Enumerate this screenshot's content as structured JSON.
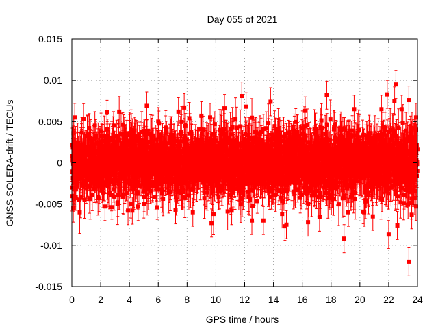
{
  "chart_data": {
    "type": "scatter",
    "title": "Day 055 of 2021",
    "xlabel": "GPS time / hours",
    "ylabel": "GNSS SOLERA-drift / TECUs",
    "xlim": [
      0,
      24
    ],
    "ylim": [
      -0.015,
      0.015
    ],
    "x_ticks": [
      "0",
      "2",
      "4",
      "6",
      "8",
      "10",
      "12",
      "14",
      "16",
      "18",
      "20",
      "22",
      "24"
    ],
    "y_ticks": [
      "-0.015",
      "-0.01",
      "-0.005",
      "0",
      "0.005",
      "0.01",
      "0.015"
    ],
    "grid": true,
    "marker_color": "#ff0000",
    "series": [
      {
        "marker": "square",
        "error_bars": true,
        "bulk": {
          "x_range": [
            0,
            24
          ],
          "y_center": 0.0,
          "y_spread": 0.0045,
          "typical_error": 0.002,
          "approx_points": 2800
        },
        "outliers": [
          {
            "x": 0.2,
            "y": 0.0055
          },
          {
            "x": 0.1,
            "y": -0.0055
          },
          {
            "x": 0.5,
            "y": -0.0045
          },
          {
            "x": 1.6,
            "y": 0.0045
          },
          {
            "x": 2.3,
            "y": -0.0053
          },
          {
            "x": 2.9,
            "y": 0.0045
          },
          {
            "x": 3.2,
            "y": -0.0048
          },
          {
            "x": 3.9,
            "y": -0.0058
          },
          {
            "x": 4.1,
            "y": -0.005
          },
          {
            "x": 4.6,
            "y": -0.0053
          },
          {
            "x": 5.2,
            "y": 0.0069
          },
          {
            "x": 5.0,
            "y": -0.005
          },
          {
            "x": 6.0,
            "y": 0.005
          },
          {
            "x": 7.4,
            "y": 0.0062
          },
          {
            "x": 7.8,
            "y": 0.0067
          },
          {
            "x": 7.2,
            "y": -0.0057
          },
          {
            "x": 8.4,
            "y": -0.006
          },
          {
            "x": 9.0,
            "y": 0.0057
          },
          {
            "x": 9.6,
            "y": 0.0055
          },
          {
            "x": 9.7,
            "y": -0.0073
          },
          {
            "x": 10.6,
            "y": 0.0066
          },
          {
            "x": 11.1,
            "y": -0.0058
          },
          {
            "x": 11.8,
            "y": 0.0081
          },
          {
            "x": 12.1,
            "y": 0.0068
          },
          {
            "x": 12.5,
            "y": -0.007
          },
          {
            "x": 13.3,
            "y": -0.007
          },
          {
            "x": 13.8,
            "y": 0.0074
          },
          {
            "x": 14.6,
            "y": -0.0062
          },
          {
            "x": 14.8,
            "y": -0.0077
          },
          {
            "x": 14.9,
            "y": -0.0075
          },
          {
            "x": 16.2,
            "y": 0.0063
          },
          {
            "x": 16.4,
            "y": -0.0072
          },
          {
            "x": 17.2,
            "y": -0.0066
          },
          {
            "x": 17.7,
            "y": 0.0082
          },
          {
            "x": 18.9,
            "y": -0.0092
          },
          {
            "x": 19.2,
            "y": -0.006
          },
          {
            "x": 19.6,
            "y": 0.0065
          },
          {
            "x": 20.3,
            "y": -0.006
          },
          {
            "x": 20.9,
            "y": -0.0065
          },
          {
            "x": 21.5,
            "y": 0.0065
          },
          {
            "x": 21.9,
            "y": 0.0083
          },
          {
            "x": 22.0,
            "y": -0.0087
          },
          {
            "x": 22.4,
            "y": 0.0075
          },
          {
            "x": 22.5,
            "y": 0.0095
          },
          {
            "x": 22.6,
            "y": -0.0076
          },
          {
            "x": 22.9,
            "y": 0.0065
          },
          {
            "x": 23.4,
            "y": 0.0076
          },
          {
            "x": 23.4,
            "y": -0.012
          },
          {
            "x": 23.6,
            "y": -0.0063
          },
          {
            "x": 23.9,
            "y": 0.0055
          },
          {
            "x": 23.9,
            "y": -0.0053
          }
        ]
      }
    ]
  }
}
